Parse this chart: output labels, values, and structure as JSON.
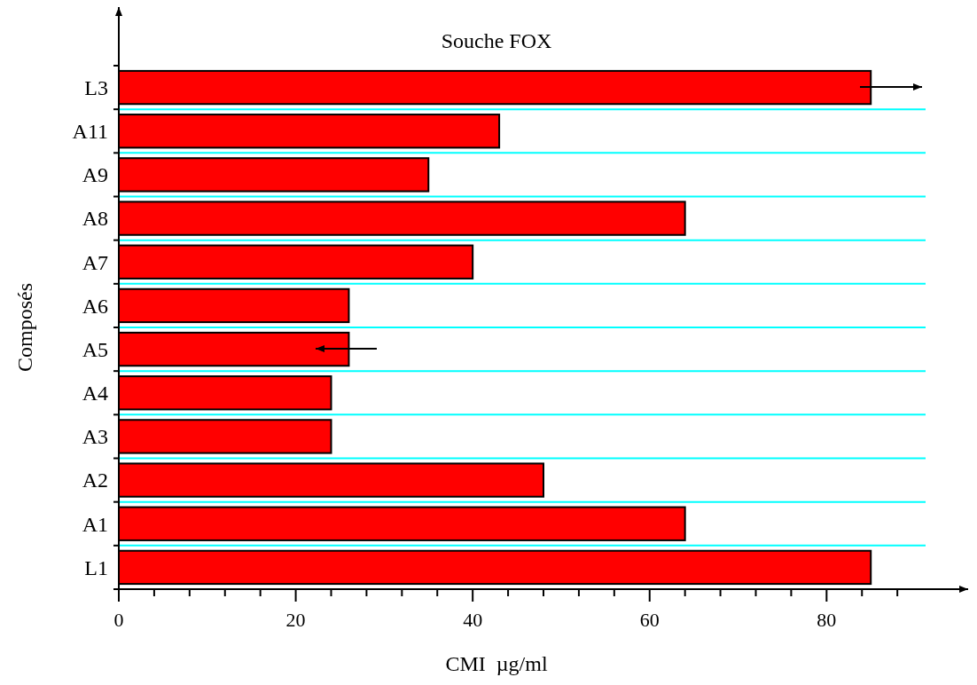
{
  "chart_data": {
    "type": "bar",
    "orientation": "horizontal",
    "title": "Souche FOX",
    "xlabel": "CMI  µg/ml",
    "ylabel": "Composés",
    "categories": [
      "L3",
      "A11",
      "A9",
      "A8",
      "A7",
      "A6",
      "A5",
      "A4",
      "A3",
      "A2",
      "A1",
      "L1"
    ],
    "values": [
      85,
      43,
      35,
      64,
      40,
      26,
      26,
      24,
      24,
      48,
      64,
      85
    ],
    "color": "#ff0000",
    "xlim": [
      0,
      96
    ],
    "xticks": [
      0,
      {
        "value": 4,
        "label": null
      },
      {
        "value": 8,
        "label": null
      },
      {
        "value": 12,
        "label": null
      },
      {
        "value": 16,
        "label": null
      },
      20,
      {
        "value": 24,
        "label": null
      },
      {
        "value": 28,
        "label": null
      },
      {
        "value": 32,
        "label": null
      },
      {
        "value": 36,
        "label": null
      },
      40,
      {
        "value": 44,
        "label": null
      },
      {
        "value": 48,
        "label": null
      },
      {
        "value": 52,
        "label": null
      },
      {
        "value": 56,
        "label": null
      },
      60,
      {
        "value": 64,
        "label": null
      },
      {
        "value": 68,
        "label": null
      },
      {
        "value": 72,
        "label": null
      },
      {
        "value": 76,
        "label": null
      },
      80,
      {
        "value": 84,
        "label": null
      },
      {
        "value": 88,
        "label": null
      }
    ],
    "grid": "y"
  }
}
